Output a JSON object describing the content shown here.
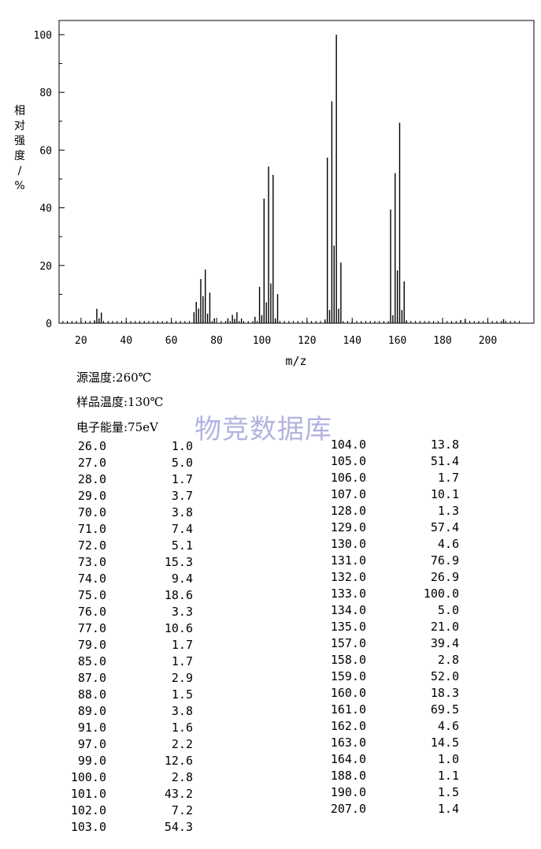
{
  "chart_data": {
    "type": "bar",
    "xlabel": "m/z",
    "ylabel": "相对强度/%",
    "xlim": [
      10,
      215
    ],
    "ylim": [
      0,
      105
    ],
    "x_ticks": [
      20,
      40,
      60,
      80,
      100,
      120,
      140,
      160,
      180,
      200
    ],
    "y_ticks": [
      0,
      20,
      40,
      60,
      80,
      100
    ],
    "grid": false,
    "peaks": [
      {
        "mz": 26.0,
        "intensity": 1.0
      },
      {
        "mz": 27.0,
        "intensity": 5.0
      },
      {
        "mz": 28.0,
        "intensity": 1.7
      },
      {
        "mz": 29.0,
        "intensity": 3.7
      },
      {
        "mz": 70.0,
        "intensity": 3.8
      },
      {
        "mz": 71.0,
        "intensity": 7.4
      },
      {
        "mz": 72.0,
        "intensity": 5.1
      },
      {
        "mz": 73.0,
        "intensity": 15.3
      },
      {
        "mz": 74.0,
        "intensity": 9.4
      },
      {
        "mz": 75.0,
        "intensity": 18.6
      },
      {
        "mz": 76.0,
        "intensity": 3.3
      },
      {
        "mz": 77.0,
        "intensity": 10.6
      },
      {
        "mz": 79.0,
        "intensity": 1.7
      },
      {
        "mz": 85.0,
        "intensity": 1.7
      },
      {
        "mz": 87.0,
        "intensity": 2.9
      },
      {
        "mz": 88.0,
        "intensity": 1.5
      },
      {
        "mz": 89.0,
        "intensity": 3.8
      },
      {
        "mz": 91.0,
        "intensity": 1.6
      },
      {
        "mz": 97.0,
        "intensity": 2.2
      },
      {
        "mz": 99.0,
        "intensity": 12.6
      },
      {
        "mz": 100.0,
        "intensity": 2.8
      },
      {
        "mz": 101.0,
        "intensity": 43.2
      },
      {
        "mz": 102.0,
        "intensity": 7.2
      },
      {
        "mz": 103.0,
        "intensity": 54.3
      },
      {
        "mz": 104.0,
        "intensity": 13.8
      },
      {
        "mz": 105.0,
        "intensity": 51.4
      },
      {
        "mz": 106.0,
        "intensity": 1.7
      },
      {
        "mz": 107.0,
        "intensity": 10.1
      },
      {
        "mz": 128.0,
        "intensity": 1.3
      },
      {
        "mz": 129.0,
        "intensity": 57.4
      },
      {
        "mz": 130.0,
        "intensity": 4.6
      },
      {
        "mz": 131.0,
        "intensity": 76.9
      },
      {
        "mz": 132.0,
        "intensity": 26.9
      },
      {
        "mz": 133.0,
        "intensity": 100.0
      },
      {
        "mz": 134.0,
        "intensity": 5.0
      },
      {
        "mz": 135.0,
        "intensity": 21.0
      },
      {
        "mz": 157.0,
        "intensity": 39.4
      },
      {
        "mz": 158.0,
        "intensity": 2.8
      },
      {
        "mz": 159.0,
        "intensity": 52.0
      },
      {
        "mz": 160.0,
        "intensity": 18.3
      },
      {
        "mz": 161.0,
        "intensity": 69.5
      },
      {
        "mz": 162.0,
        "intensity": 4.6
      },
      {
        "mz": 163.0,
        "intensity": 14.5
      },
      {
        "mz": 164.0,
        "intensity": 1.0
      },
      {
        "mz": 188.0,
        "intensity": 1.1
      },
      {
        "mz": 190.0,
        "intensity": 1.5
      },
      {
        "mz": 207.0,
        "intensity": 1.4
      }
    ],
    "table_left": [
      [
        "26.0",
        "1.0"
      ],
      [
        "27.0",
        "5.0"
      ],
      [
        "28.0",
        "1.7"
      ],
      [
        "29.0",
        "3.7"
      ],
      [
        "70.0",
        "3.8"
      ],
      [
        "71.0",
        "7.4"
      ],
      [
        "72.0",
        "5.1"
      ],
      [
        "73.0",
        "15.3"
      ],
      [
        "74.0",
        "9.4"
      ],
      [
        "75.0",
        "18.6"
      ],
      [
        "76.0",
        "3.3"
      ],
      [
        "77.0",
        "10.6"
      ],
      [
        "79.0",
        "1.7"
      ],
      [
        "85.0",
        "1.7"
      ],
      [
        "87.0",
        "2.9"
      ],
      [
        "88.0",
        "1.5"
      ],
      [
        "89.0",
        "3.8"
      ],
      [
        "91.0",
        "1.6"
      ],
      [
        "97.0",
        "2.2"
      ],
      [
        "99.0",
        "12.6"
      ],
      [
        "100.0",
        "2.8"
      ],
      [
        "101.0",
        "43.2"
      ],
      [
        "102.0",
        "7.2"
      ],
      [
        "103.0",
        "54.3"
      ]
    ],
    "table_right": [
      [
        "104.0",
        "13.8"
      ],
      [
        "105.0",
        "51.4"
      ],
      [
        "106.0",
        "1.7"
      ],
      [
        "107.0",
        "10.1"
      ],
      [
        "128.0",
        "1.3"
      ],
      [
        "129.0",
        "57.4"
      ],
      [
        "130.0",
        "4.6"
      ],
      [
        "131.0",
        "76.9"
      ],
      [
        "132.0",
        "26.9"
      ],
      [
        "133.0",
        "100.0"
      ],
      [
        "134.0",
        "5.0"
      ],
      [
        "135.0",
        "21.0"
      ],
      [
        "157.0",
        "39.4"
      ],
      [
        "158.0",
        "2.8"
      ],
      [
        "159.0",
        "52.0"
      ],
      [
        "160.0",
        "18.3"
      ],
      [
        "161.0",
        "69.5"
      ],
      [
        "162.0",
        "4.6"
      ],
      [
        "163.0",
        "14.5"
      ],
      [
        "164.0",
        "1.0"
      ],
      [
        "188.0",
        "1.1"
      ],
      [
        "190.0",
        "1.5"
      ],
      [
        "207.0",
        "1.4"
      ]
    ]
  },
  "conditions": {
    "source_temp": "源温度:260℃",
    "sample_temp": "样品温度:130℃",
    "electron_energy": "电子能量:75eV"
  },
  "watermark": "物竞数据库",
  "colors": {
    "line": "#000000",
    "watermark": "#9a9ad8"
  }
}
